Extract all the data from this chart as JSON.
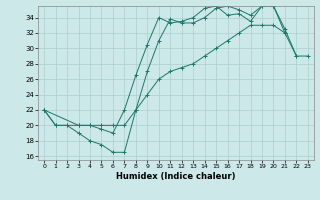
{
  "xlabel": "Humidex (Indice chaleur)",
  "xlim": [
    -0.5,
    23.5
  ],
  "ylim": [
    15.5,
    35.5
  ],
  "xticks": [
    0,
    1,
    2,
    3,
    4,
    5,
    6,
    7,
    8,
    9,
    10,
    11,
    12,
    13,
    14,
    15,
    16,
    17,
    18,
    19,
    20,
    21,
    22,
    23
  ],
  "yticks": [
    16,
    18,
    20,
    22,
    24,
    26,
    28,
    30,
    32,
    34
  ],
  "background_color": "#cce8e8",
  "grid_color": "#aacfcf",
  "line_color": "#1a7868",
  "line1_x": [
    0,
    1,
    2,
    3,
    4,
    5,
    6,
    7,
    8,
    9,
    10,
    11,
    12,
    13,
    14,
    15,
    16,
    17,
    18,
    19,
    20,
    21
  ],
  "line1_y": [
    22,
    20,
    20,
    19,
    18,
    17.5,
    16.5,
    16.5,
    22,
    27,
    31,
    33.8,
    33.3,
    33.3,
    34,
    35.2,
    35.5,
    35,
    34.3,
    35.5,
    35.5,
    32
  ],
  "line2_x": [
    0,
    3,
    4,
    5,
    6,
    7,
    8,
    9,
    10,
    11,
    12,
    13,
    14,
    15,
    16,
    17,
    18,
    19,
    20,
    21,
    22
  ],
  "line2_y": [
    22,
    20,
    20,
    19.5,
    19,
    22,
    26.5,
    30.5,
    34,
    33.3,
    33.5,
    34,
    35.2,
    35.5,
    34.3,
    34.5,
    33.5,
    35.5,
    35.5,
    32.5,
    29
  ],
  "line3_x": [
    0,
    1,
    2,
    3,
    4,
    5,
    6,
    7,
    8,
    9,
    10,
    11,
    12,
    13,
    14,
    15,
    16,
    17,
    18,
    19,
    20,
    21,
    22,
    23
  ],
  "line3_y": [
    22,
    20,
    20,
    20,
    20,
    20,
    20,
    20,
    22,
    24,
    26,
    27,
    27.5,
    28,
    29,
    30,
    31,
    32,
    33,
    33,
    33,
    32,
    29,
    29
  ]
}
